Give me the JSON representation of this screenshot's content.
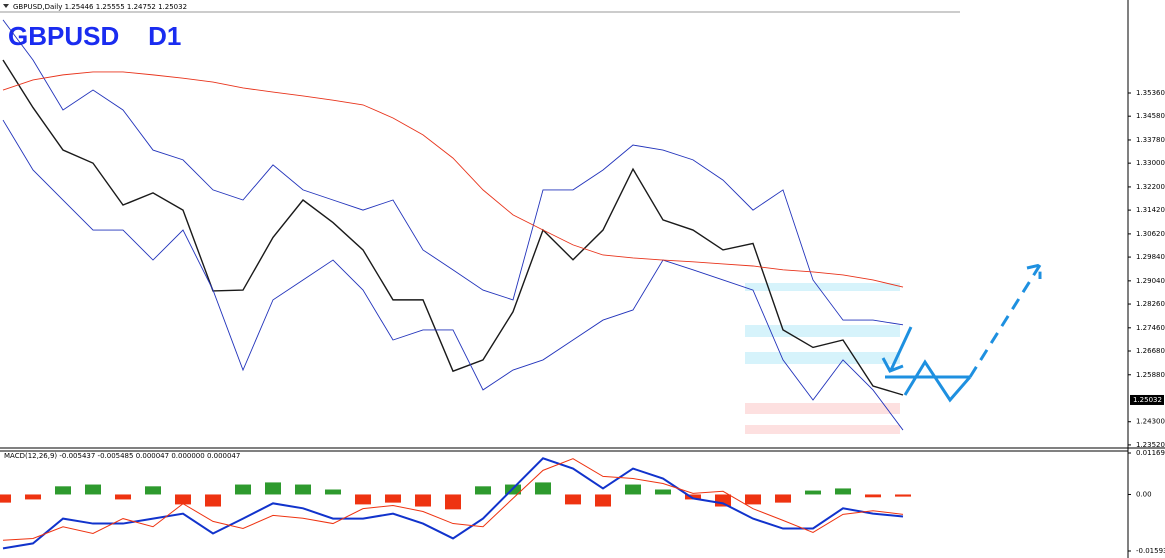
{
  "header": "GBPUSD,Daily 1.25446 1.25555 1.24752 1.25032",
  "chart_data": [
    {
      "type": "line",
      "title": "GBPUSD    D1",
      "ylim": [
        1.2345,
        1.3822
      ],
      "yticks": [
        {
          "value": 1.3536,
          "label": "1.35360"
        },
        {
          "value": 1.3458,
          "label": "1.34580"
        },
        {
          "value": 1.3378,
          "label": "1.33780"
        },
        {
          "value": 1.33,
          "label": "1.33000"
        },
        {
          "value": 1.322,
          "label": "1.32200"
        },
        {
          "value": 1.3142,
          "label": "1.31420"
        },
        {
          "value": 1.3062,
          "label": "1.30620"
        },
        {
          "value": 1.2984,
          "label": "1.29840"
        },
        {
          "value": 1.2904,
          "label": "1.29040"
        },
        {
          "value": 1.2826,
          "label": "1.28260"
        },
        {
          "value": 1.2746,
          "label": "1.27460"
        },
        {
          "value": 1.2668,
          "label": "1.26680"
        },
        {
          "value": 1.2588,
          "label": "1.25880"
        },
        {
          "value": 1.243,
          "label": "1.24300"
        },
        {
          "value": 1.2352,
          "label": "1.23520"
        }
      ],
      "last_price": {
        "value": 1.25032,
        "label": "1.25032"
      },
      "series": [
        {
          "color": "#1a1a1a",
          "values": [
            1.3647,
            1.3487,
            1.3344,
            1.33,
            1.3159,
            1.32,
            1.3142,
            1.287,
            1.2873,
            1.305,
            1.3176,
            1.31,
            1.3008,
            1.284,
            1.284,
            1.26,
            1.2638,
            1.28,
            1.3075,
            1.2975,
            1.3075,
            1.328,
            1.3109,
            1.3075,
            1.3008,
            1.303,
            1.2739,
            1.268,
            1.2705,
            1.255,
            1.252
          ]
        },
        {
          "color": "#2233bb",
          "values": [
            1.3782,
            1.3647,
            1.3479,
            1.3546,
            1.3479,
            1.3344,
            1.3311,
            1.321,
            1.3176,
            1.3294,
            1.321,
            1.3176,
            1.3142,
            1.3176,
            1.3008,
            1.2941,
            1.2873,
            1.284,
            1.321,
            1.321,
            1.3277,
            1.3361,
            1.3344,
            1.3311,
            1.3243,
            1.3142,
            1.321,
            1.2907,
            1.2772,
            1.2772,
            1.2756
          ]
        },
        {
          "color": "#2233bb",
          "values": [
            1.3445,
            1.3277,
            1.3176,
            1.3075,
            1.3075,
            1.2974,
            1.3075,
            1.2873,
            1.2604,
            1.284,
            1.2907,
            1.2974,
            1.2873,
            1.2705,
            1.2739,
            1.2739,
            1.2537,
            1.2604,
            1.2638,
            1.2705,
            1.2772,
            1.2806,
            1.2974,
            1.2941,
            1.2907,
            1.2873,
            1.2638,
            1.2503,
            1.2638,
            1.2537,
            1.2402
          ]
        },
        {
          "color": "#e8341c",
          "values": [
            1.3546,
            1.358,
            1.3597,
            1.3607,
            1.3607,
            1.3597,
            1.3586,
            1.3573,
            1.3553,
            1.3539,
            1.3526,
            1.3512,
            1.3496,
            1.3452,
            1.3395,
            1.3317,
            1.321,
            1.3126,
            1.3075,
            1.3025,
            1.2991,
            1.2981,
            1.2974,
            1.2968,
            1.2961,
            1.2954,
            1.2941,
            1.2934,
            1.2924,
            1.2907,
            1.2883
          ]
        }
      ]
    },
    {
      "type": "macd",
      "title": "MACD(12,26,9) -0.005437 -0.005485 0.000047 0.000000 0.000047",
      "ylim": [
        -0.01735,
        0.01254
      ],
      "yticks": [
        0.011695,
        {
          "value": 0,
          "label": "0.00"
        },
        -0.015937
      ],
      "series": [
        {
          "draw": "bar",
          "color": "#2e9a2e",
          "color_negative": "#ee3311",
          "values": [
            -0.0023,
            -0.0014,
            0.0023,
            0.0028,
            -0.0014,
            0.0023,
            -0.0028,
            -0.0034,
            0.0028,
            0.0034,
            0.0028,
            0.0014,
            -0.0028,
            -0.0023,
            -0.0034,
            -0.0042,
            0.0023,
            0.0028,
            0.0034,
            -0.0028,
            -0.0034,
            0.0028,
            0.0014,
            -0.0014,
            -0.0034,
            -0.0028,
            -0.0023,
            0.0011,
            0.0017,
            -0.0008,
            -0.0006
          ]
        },
        {
          "draw": "line",
          "color": "#1133cc",
          "values": [
            -0.0152,
            -0.0138,
            -0.0068,
            -0.0082,
            -0.0082,
            -0.0068,
            -0.0054,
            -0.011,
            -0.0068,
            -0.0025,
            -0.0039,
            -0.0068,
            -0.0068,
            -0.0054,
            -0.0082,
            -0.0124,
            -0.0068,
            0.0017,
            0.0102,
            0.0073,
            0.0017,
            0.0073,
            0.0045,
            -0.0011,
            -0.0025,
            -0.0068,
            -0.0096,
            -0.0096,
            -0.0039,
            -0.0054,
            -0.0062
          ]
        },
        {
          "draw": "line",
          "color": "#ee3311",
          "values": [
            -0.0129,
            -0.0124,
            -0.0091,
            -0.011,
            -0.0068,
            -0.0091,
            -0.0026,
            -0.0076,
            -0.0096,
            -0.0059,
            -0.0067,
            -0.0082,
            -0.004,
            -0.0031,
            -0.0048,
            -0.0082,
            -0.0091,
            -0.0011,
            0.0068,
            0.0101,
            0.0051,
            0.0045,
            0.0031,
            0.0003,
            0.0009,
            -0.004,
            -0.0073,
            -0.0107,
            -0.0056,
            -0.0046,
            -0.0056
          ]
        }
      ]
    }
  ]
}
